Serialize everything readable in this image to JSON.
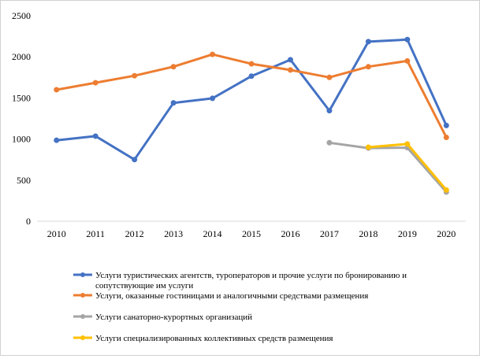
{
  "chart_data": {
    "type": "line",
    "title": "",
    "xlabel": "",
    "ylabel": "",
    "categories": [
      "2010",
      "2011",
      "2012",
      "2013",
      "2014",
      "2015",
      "2016",
      "2017",
      "2018",
      "2019",
      "2020"
    ],
    "yticks": [
      "0",
      "500",
      "1000",
      "1500",
      "2000",
      "2500"
    ],
    "ylim": [
      0,
      2500
    ],
    "grid": false,
    "legend_position": "bottom",
    "series": [
      {
        "name": "Услуги туристических агентств, туроператоров и прочие услуги по бронированию и сопутствующие им услуги",
        "name_line1": "Услуги туристических агентств, туроператоров и прочие услуги по бронированию и",
        "name_line2": "сопутствующие им услуги",
        "color": "#4472C4",
        "values": [
          985,
          1035,
          750,
          1440,
          1495,
          1765,
          1965,
          1345,
          2185,
          2210,
          1165
        ]
      },
      {
        "name": "Услуги, оказанные гостиницами и аналогичными средствами размещения",
        "color": "#ED7D31",
        "values": [
          1600,
          1685,
          1770,
          1880,
          2030,
          1915,
          1840,
          1750,
          1880,
          1950,
          1020
        ]
      },
      {
        "name": "Услуги санаторно-курортных организаций",
        "color": "#A5A5A5",
        "values": [
          null,
          null,
          null,
          null,
          null,
          null,
          null,
          955,
          890,
          895,
          355
        ]
      },
      {
        "name": "Услуги специализированных коллективных средств размещения",
        "color": "#FFC000",
        "values": [
          null,
          null,
          null,
          null,
          null,
          null,
          null,
          null,
          900,
          940,
          380
        ]
      }
    ]
  }
}
